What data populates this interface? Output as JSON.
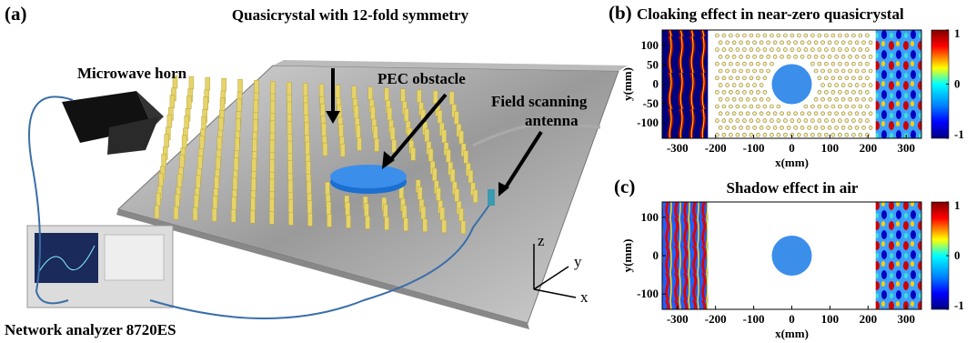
{
  "panel_a": {
    "label": "(a)",
    "title": "Quasicrystal with 12-fold symmetry",
    "horn": "Microwave horn",
    "obstacle": "PEC obstacle",
    "antenna": [
      "Field scanning",
      "antenna"
    ],
    "analyzer": "Network analyzer 8720ES",
    "axes": [
      "z",
      "y",
      "x"
    ]
  },
  "panel_b": {
    "label": "(b)",
    "title": "Cloaking effect in near-zero quasicrystal",
    "xlabel": "x(mm)",
    "ylabel": "y(mm)",
    "xlim": [
      -340,
      340
    ],
    "ylim": [
      -140,
      140
    ],
    "xticks": [
      -300,
      -200,
      -100,
      0,
      100,
      200,
      300
    ],
    "yticks": [
      100,
      50,
      0,
      -50,
      -100
    ],
    "colorbar_ticks": [
      1,
      0,
      -1
    ]
  },
  "panel_c": {
    "label": "(c)",
    "title": "Shadow effect in air",
    "xlabel": "x(mm)",
    "ylabel": "y(mm)",
    "xlim": [
      -340,
      340
    ],
    "ylim": [
      -140,
      140
    ],
    "xticks": [
      -300,
      -200,
      -100,
      0,
      100,
      200,
      300
    ],
    "yticks": [
      100,
      0,
      -100
    ],
    "colorbar_ticks": [
      1,
      0,
      -1
    ]
  }
}
